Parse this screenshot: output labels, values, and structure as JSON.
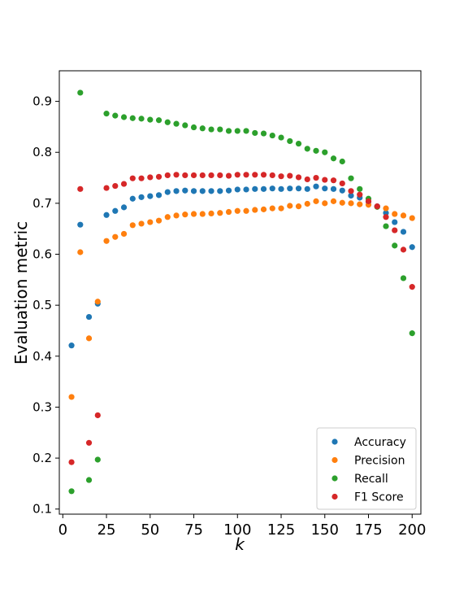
{
  "chart_data": {
    "type": "scatter",
    "title": "",
    "xlabel": "k",
    "ylabel": "Evaluation metric",
    "xlim": [
      -2,
      205
    ],
    "ylim": [
      0.09,
      0.96
    ],
    "xticks": [
      0,
      25,
      50,
      75,
      100,
      125,
      150,
      175,
      200
    ],
    "yticks": [
      0.1,
      0.2,
      0.3,
      0.4,
      0.5,
      0.6,
      0.7,
      0.8,
      0.9
    ],
    "grid": false,
    "legend_position": "lower-right",
    "x": [
      5,
      10,
      15,
      20,
      25,
      30,
      35,
      40,
      45,
      50,
      55,
      60,
      65,
      70,
      75,
      80,
      85,
      90,
      95,
      100,
      105,
      110,
      115,
      120,
      125,
      130,
      135,
      140,
      145,
      150,
      155,
      160,
      165,
      170,
      175,
      180,
      185,
      190,
      195,
      200
    ],
    "series": [
      {
        "name": "Accuracy",
        "color": "#1f77b4",
        "values": [
          0.421,
          0.658,
          0.477,
          0.503,
          0.677,
          0.685,
          0.692,
          0.709,
          0.712,
          0.714,
          0.716,
          0.722,
          0.724,
          0.725,
          0.724,
          0.724,
          0.724,
          0.724,
          0.725,
          0.727,
          0.727,
          0.728,
          0.728,
          0.729,
          0.728,
          0.729,
          0.729,
          0.728,
          0.733,
          0.729,
          0.728,
          0.725,
          0.715,
          0.711,
          0.703,
          0.694,
          0.681,
          0.663,
          0.644,
          0.614
        ]
      },
      {
        "name": "Precision",
        "color": "#ff7f0e",
        "values": [
          0.32,
          0.604,
          0.435,
          0.507,
          0.626,
          0.634,
          0.64,
          0.657,
          0.66,
          0.663,
          0.666,
          0.673,
          0.676,
          0.678,
          0.679,
          0.679,
          0.68,
          0.681,
          0.683,
          0.685,
          0.685,
          0.687,
          0.688,
          0.69,
          0.69,
          0.695,
          0.694,
          0.699,
          0.704,
          0.7,
          0.704,
          0.701,
          0.7,
          0.698,
          0.697,
          0.693,
          0.69,
          0.679,
          0.676,
          0.671
        ]
      },
      {
        "name": "Recall",
        "color": "#2ca02c",
        "values": [
          0.135,
          0.917,
          0.157,
          0.197,
          0.876,
          0.872,
          0.869,
          0.867,
          0.866,
          0.864,
          0.863,
          0.859,
          0.856,
          0.853,
          0.849,
          0.847,
          0.845,
          0.845,
          0.842,
          0.842,
          0.842,
          0.838,
          0.837,
          0.833,
          0.829,
          0.822,
          0.817,
          0.807,
          0.803,
          0.8,
          0.788,
          0.782,
          0.749,
          0.728,
          0.709,
          0.693,
          0.655,
          0.617,
          0.553,
          0.445
        ]
      },
      {
        "name": "F1 Score",
        "color": "#d62728",
        "values": [
          0.192,
          0.728,
          0.23,
          0.284,
          0.73,
          0.734,
          0.738,
          0.749,
          0.749,
          0.751,
          0.752,
          0.755,
          0.756,
          0.755,
          0.755,
          0.755,
          0.755,
          0.755,
          0.754,
          0.756,
          0.756,
          0.756,
          0.756,
          0.755,
          0.753,
          0.754,
          0.751,
          0.747,
          0.75,
          0.746,
          0.745,
          0.739,
          0.724,
          0.717,
          0.704,
          0.694,
          0.673,
          0.647,
          0.609,
          0.536
        ]
      }
    ]
  }
}
